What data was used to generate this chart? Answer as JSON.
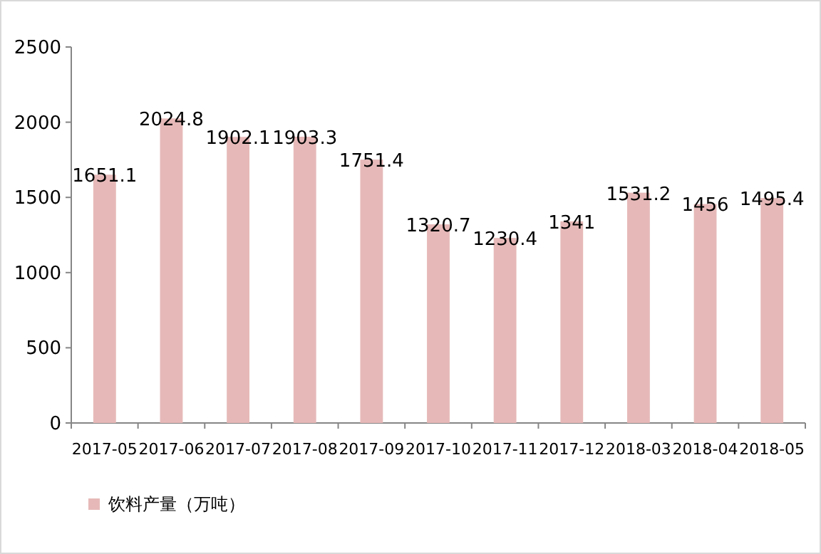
{
  "chart_data": {
    "type": "bar",
    "categories": [
      "2017-05",
      "2017-06",
      "2017-07",
      "2017-08",
      "2017-09",
      "2017-10",
      "2017-11",
      "2017-12",
      "2018-03",
      "2018-04",
      "2018-05"
    ],
    "series": [
      {
        "name": "饮料产量（万吨）",
        "color": "#e6b9b8",
        "values": [
          1651.1,
          2024.8,
          1902.1,
          1903.3,
          1751.4,
          1320.7,
          1230.4,
          1341,
          1531.2,
          1456,
          1495.4
        ]
      }
    ],
    "ylim": [
      0,
      2500
    ],
    "yticks": [
      0,
      500,
      1000,
      1500,
      2000,
      2500
    ],
    "data_labels": true,
    "legend": "bottom left",
    "grid": false
  }
}
